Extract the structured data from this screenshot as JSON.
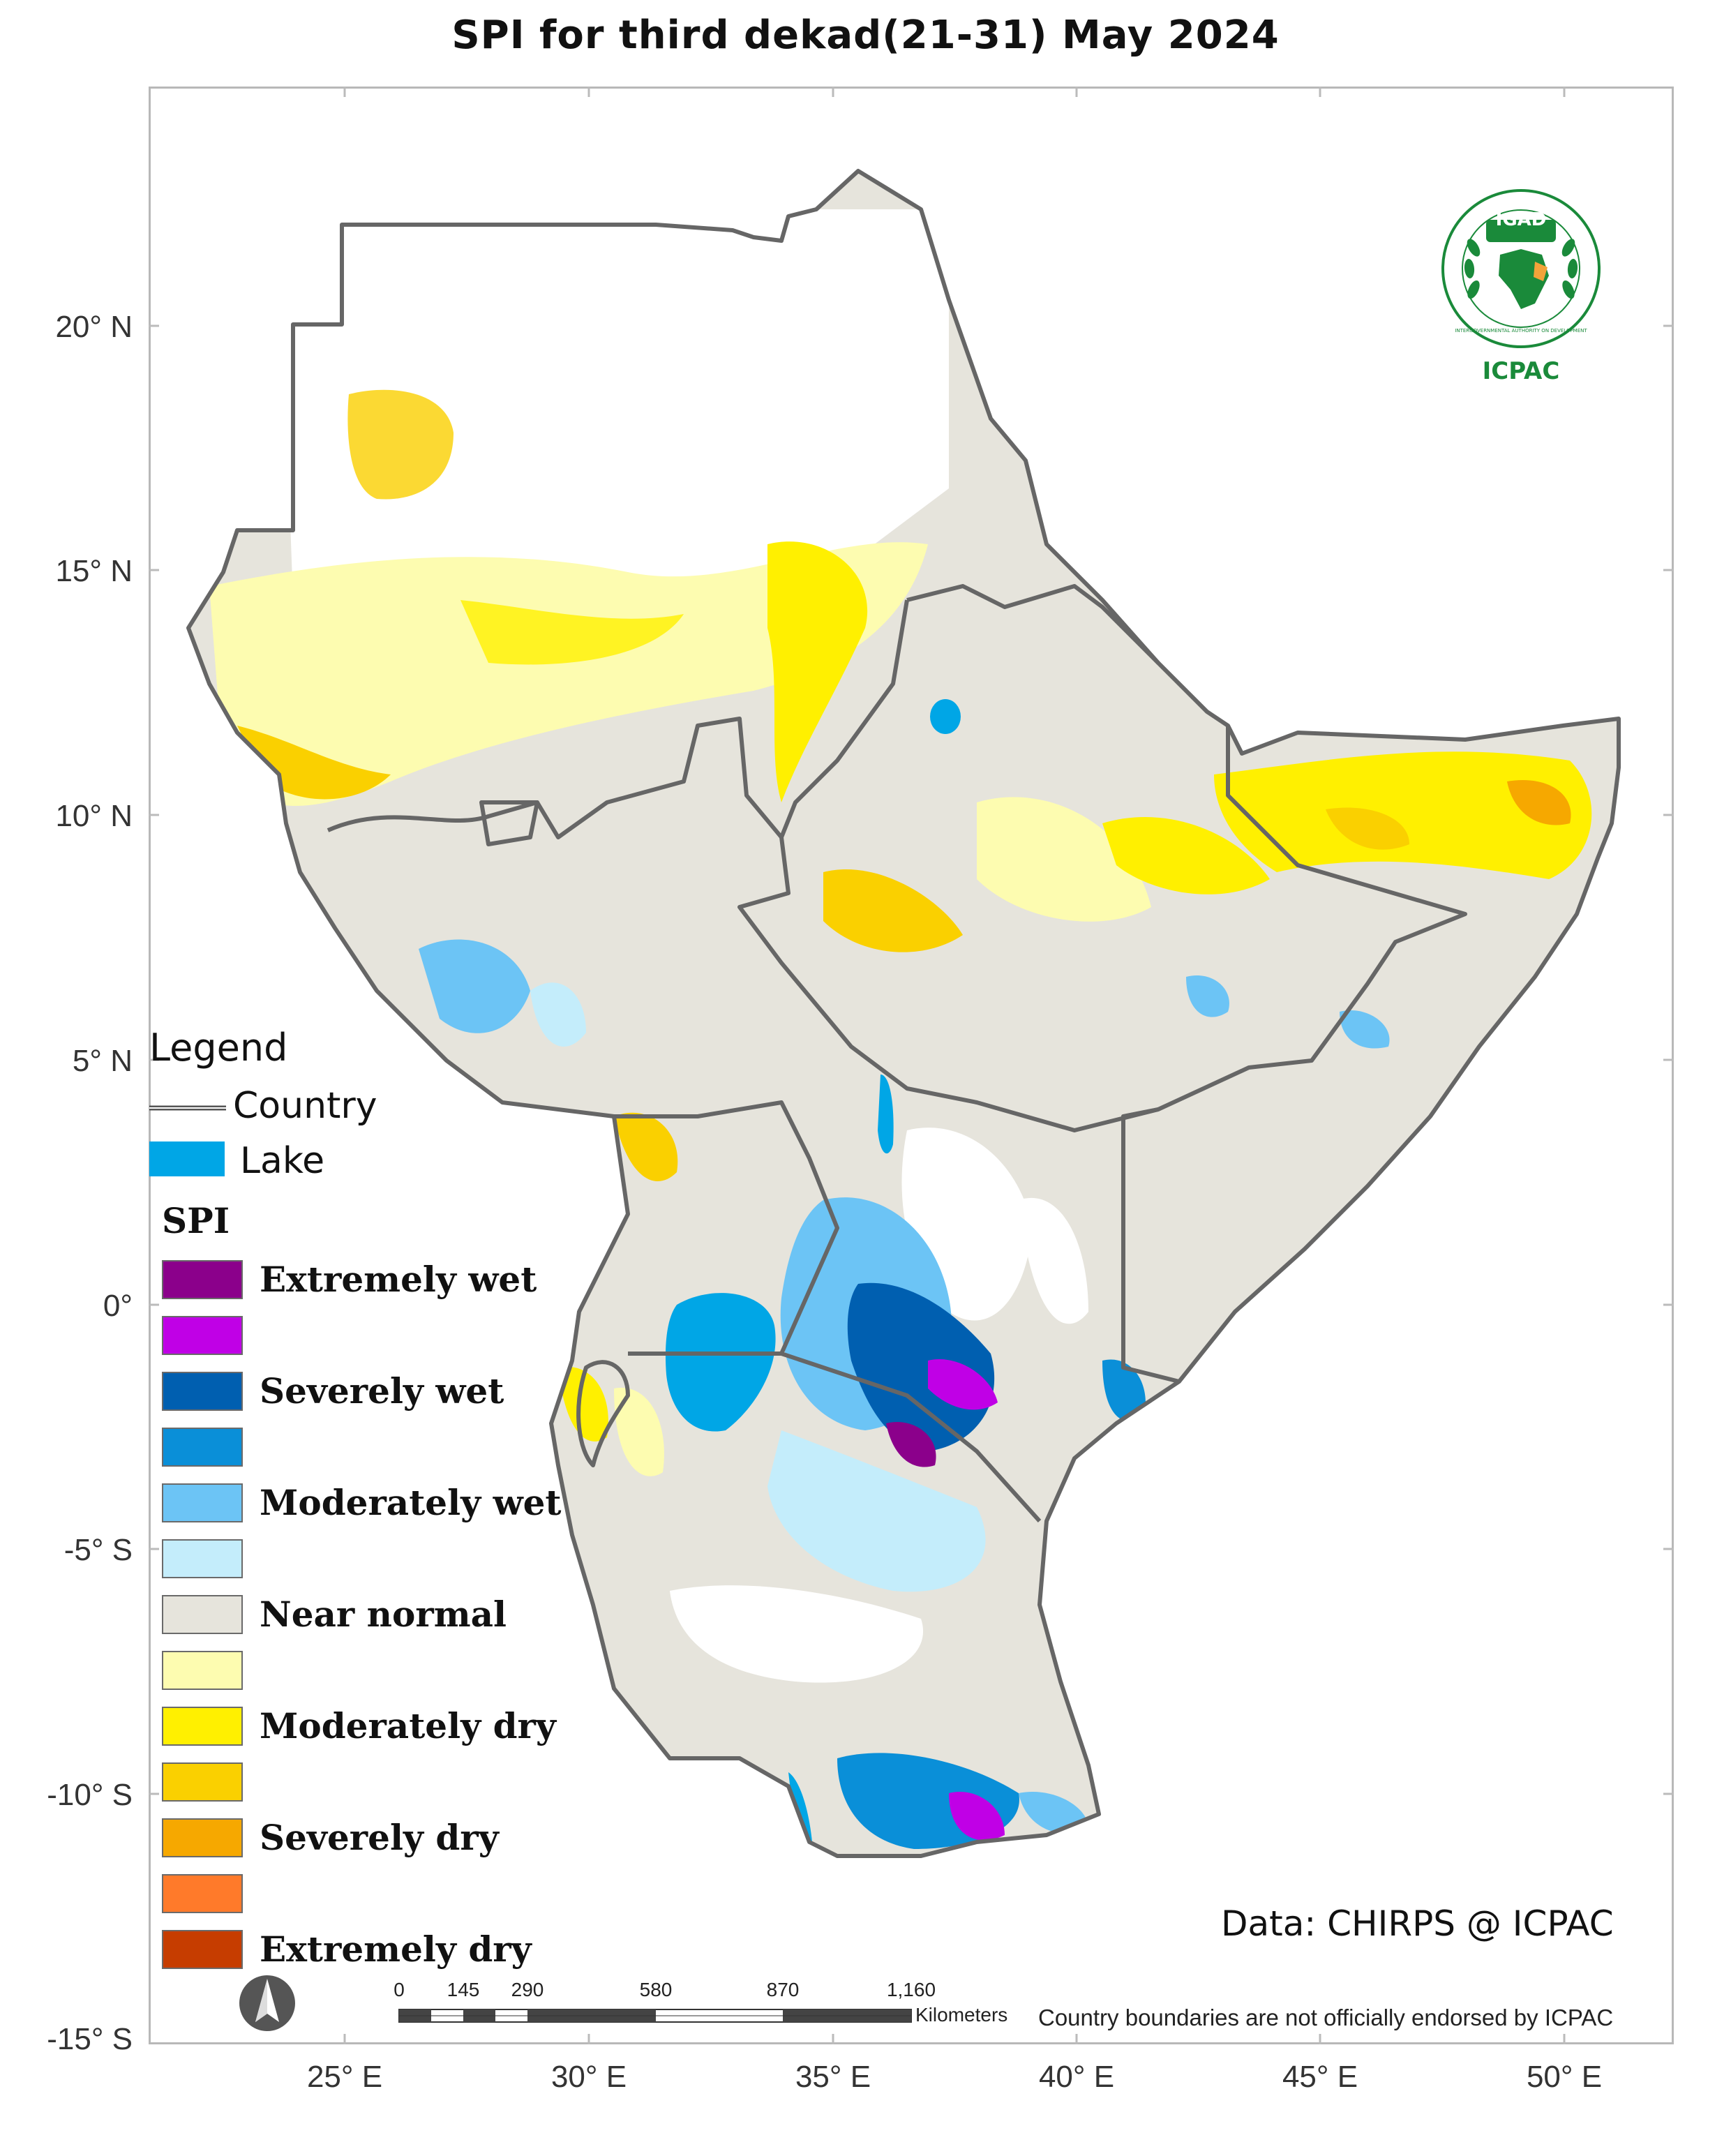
{
  "title": "SPI  for third dekad(21-31) May 2024",
  "axes": {
    "latitude_ticks": [
      "20° N",
      "15° N",
      "10° N",
      "5° N",
      "0°",
      "-5° S",
      "-10° S",
      "-15° S"
    ],
    "longitude_ticks": [
      "25° E",
      "30° E",
      "35° E",
      "40° E",
      "45° E",
      "50° E"
    ]
  },
  "legend": {
    "title": "Legend",
    "country_label": "Country",
    "lake_label": "Lake",
    "lake_color": "#00A6E6",
    "spi_heading": "SPI",
    "spi_classes": [
      {
        "label": "Extremely wet",
        "color": "#8B008B"
      },
      {
        "label": "",
        "color": "#C000E6"
      },
      {
        "label": "Severely wet",
        "color": "#005FB0"
      },
      {
        "label": "",
        "color": "#0A8FD8"
      },
      {
        "label": "Moderately wet",
        "color": "#6CC4F5"
      },
      {
        "label": "",
        "color": "#C4EDFB"
      },
      {
        "label": "Near normal",
        "color": "#E6E4DC"
      },
      {
        "label": "",
        "color": "#FDFCB0"
      },
      {
        "label": "Moderately dry",
        "color": "#FFF000"
      },
      {
        "label": "",
        "color": "#FAD000"
      },
      {
        "label": "Severely dry",
        "color": "#F6A800"
      },
      {
        "label": "",
        "color": "#FF7A2A"
      },
      {
        "label": "Extremely dry",
        "color": "#C63D00"
      }
    ]
  },
  "logo": {
    "org_short": "IGAD",
    "center": "ICPAC",
    "ring_text": "INTERGOVERNMENTAL AUTHORITY ON DEVELOPMENT"
  },
  "data_credit": "Data: CHIRPS @ ICPAC",
  "disclaimer": "Country boundaries are not officially endorsed by ICPAC",
  "scale_bar": {
    "ticks": [
      "0",
      "145",
      "290",
      "580",
      "870",
      "1,160"
    ],
    "unit": "Kilometers"
  },
  "north_arrow": "north-arrow-icon"
}
